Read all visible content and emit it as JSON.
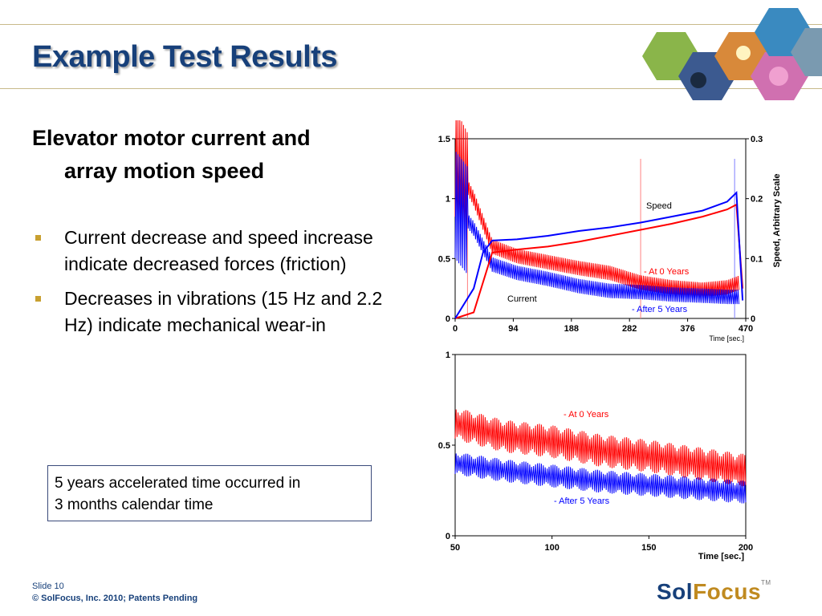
{
  "slide": {
    "title": "Example Test Results",
    "heading_line1": "Elevator motor current and",
    "heading_line2": "array motion speed",
    "bullets": [
      "Current decrease and speed increase indicate decreased forces (friction)",
      "Decreases in vibrations (15 Hz and 2.2 Hz) indicate mechanical wear-in"
    ],
    "note_line1": "5 years accelerated time occurred in",
    "note_line2": "3 months calendar time",
    "footer_slide": "Slide 10",
    "footer_copy": "© SolFocus, Inc. 2010; Patents Pending",
    "logo_sol": "Sol",
    "logo_focus": "Focus",
    "logo_tm": "TM"
  },
  "colors": {
    "title": "#17407a",
    "series_0yr": "#ff0000",
    "series_5yr": "#0000ff",
    "bullet": "#c8a030"
  },
  "chart_data": [
    {
      "type": "line",
      "x_label": "Time [sec.]",
      "y2_label": "Speed, Arbitrary Scale",
      "x_ticks": [
        "0",
        "94",
        "188",
        "282",
        "376",
        "470"
      ],
      "y_ticks": [
        "0",
        "0.5",
        "1",
        "1.5"
      ],
      "y2_ticks": [
        "0",
        "0.1",
        "0.2",
        "0.3"
      ],
      "xlim": [
        0,
        470
      ],
      "ylim": [
        0,
        1.5
      ],
      "y2lim": [
        0,
        0.3
      ],
      "annotations": [
        "Speed",
        "- At 0 Years",
        "Current",
        "- After 5 Years"
      ],
      "series": [
        {
          "name": "Current - At 0 Years",
          "x": [
            0,
            30,
            60,
            100,
            150,
            200,
            250,
            300,
            350,
            400,
            440,
            460
          ],
          "y": [
            1.3,
            1.0,
            0.6,
            0.52,
            0.47,
            0.42,
            0.38,
            0.3,
            0.26,
            0.24,
            0.26,
            0.3
          ]
        },
        {
          "name": "Current - After 5 Years",
          "x": [
            0,
            30,
            60,
            100,
            150,
            200,
            250,
            300,
            350,
            400,
            440,
            460
          ],
          "y": [
            0.95,
            0.75,
            0.45,
            0.38,
            0.33,
            0.27,
            0.23,
            0.22,
            0.2,
            0.19,
            0.18,
            0.18
          ]
        },
        {
          "name": "Speed - At 0 Years",
          "x": [
            0,
            30,
            60,
            100,
            150,
            200,
            250,
            300,
            350,
            400,
            440,
            455,
            465
          ],
          "y": [
            0.0,
            0.01,
            0.11,
            0.115,
            0.12,
            0.128,
            0.138,
            0.148,
            0.158,
            0.17,
            0.182,
            0.19,
            0.05
          ]
        },
        {
          "name": "Speed - After 5 Years",
          "x": [
            0,
            30,
            45,
            60,
            100,
            150,
            200,
            250,
            300,
            350,
            400,
            440,
            455,
            465
          ],
          "y": [
            0.0,
            0.05,
            0.11,
            0.13,
            0.132,
            0.138,
            0.146,
            0.152,
            0.16,
            0.17,
            0.18,
            0.195,
            0.21,
            0.03
          ]
        }
      ]
    },
    {
      "type": "line",
      "x_label": "Time [sec.]",
      "x_ticks": [
        "50",
        "100",
        "150",
        "200"
      ],
      "y_ticks": [
        "0",
        "0.5",
        "1"
      ],
      "xlim": [
        50,
        200
      ],
      "ylim": [
        0,
        1
      ],
      "annotations": [
        "- At 0 Years",
        "- After 5 Years"
      ],
      "series": [
        {
          "name": "- At 0 Years",
          "x": [
            50,
            75,
            100,
            125,
            150,
            175,
            200
          ],
          "y": [
            0.62,
            0.55,
            0.52,
            0.47,
            0.44,
            0.4,
            0.36
          ]
        },
        {
          "name": "- After 5 Years",
          "x": [
            50,
            75,
            100,
            125,
            150,
            175,
            200
          ],
          "y": [
            0.4,
            0.36,
            0.33,
            0.3,
            0.28,
            0.26,
            0.24
          ]
        }
      ]
    }
  ]
}
